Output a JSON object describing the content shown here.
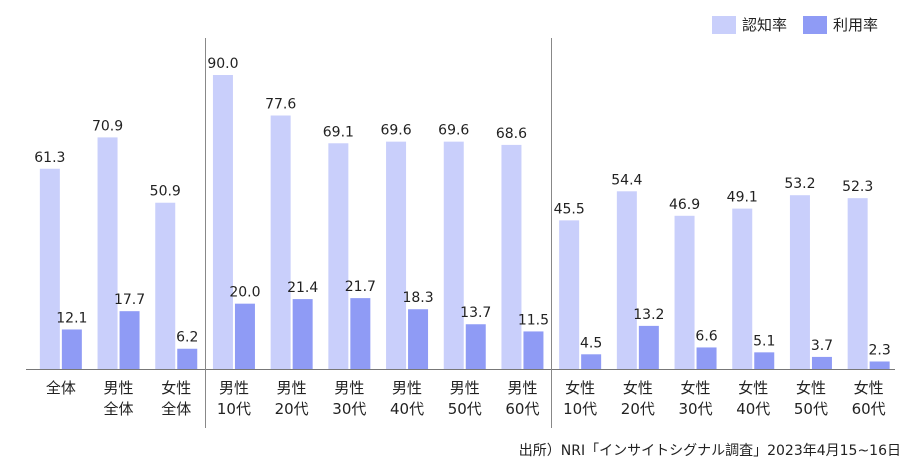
{
  "chart_data": {
    "type": "bar",
    "categories": [
      [
        "全体"
      ],
      [
        "男性",
        "全体"
      ],
      [
        "女性",
        "全体"
      ],
      [
        "男性",
        "10代"
      ],
      [
        "男性",
        "20代"
      ],
      [
        "男性",
        "30代"
      ],
      [
        "男性",
        "40代"
      ],
      [
        "男性",
        "50代"
      ],
      [
        "男性",
        "60代"
      ],
      [
        "女性",
        "10代"
      ],
      [
        "女性",
        "20代"
      ],
      [
        "女性",
        "30代"
      ],
      [
        "女性",
        "40代"
      ],
      [
        "女性",
        "50代"
      ],
      [
        "女性",
        "60代"
      ]
    ],
    "series": [
      {
        "name": "認知率",
        "color": "#c9cffb",
        "values": [
          61.3,
          70.9,
          50.9,
          90.0,
          77.6,
          69.1,
          69.6,
          69.6,
          68.6,
          45.5,
          54.4,
          46.9,
          49.1,
          53.2,
          52.3
        ]
      },
      {
        "name": "利用率",
        "color": "#8f9bf5",
        "values": [
          12.1,
          17.7,
          6.2,
          20.0,
          21.4,
          21.7,
          18.3,
          13.7,
          11.5,
          4.5,
          13.2,
          6.6,
          5.1,
          3.7,
          2.3
        ]
      }
    ],
    "ylim": [
      0,
      90
    ],
    "grid": false,
    "legend": "top-right",
    "group_separators_after_index": [
      2,
      8
    ]
  },
  "source": "出所）NRI「インサイトシグナル調査」2023年4月15~16日"
}
